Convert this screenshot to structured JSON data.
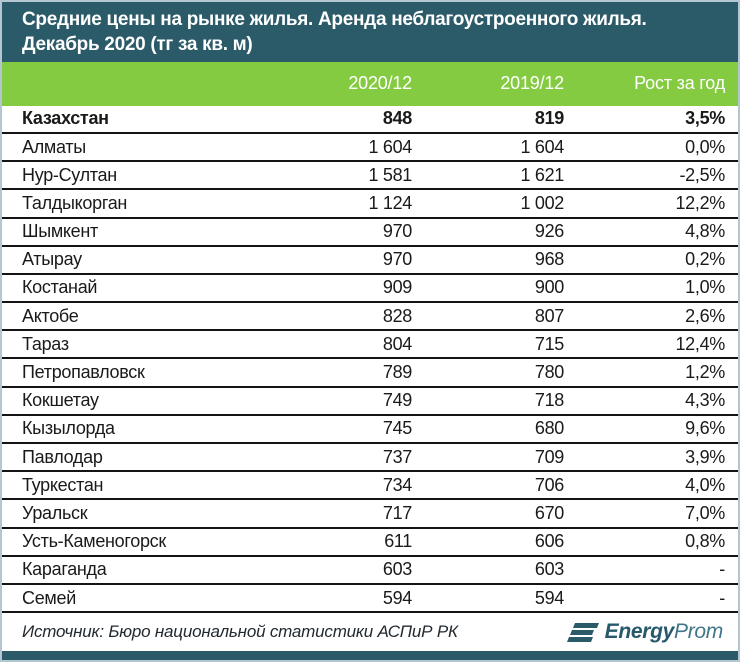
{
  "title": {
    "line1": "Средние цены на рынке жилья. Аренда неблагоустроенного жилья.",
    "line2": "Декабрь 2020 (тг за кв. м)"
  },
  "columns": {
    "col_2020": "2020/12",
    "col_2019": "2019/12",
    "col_growth": "Рост за год"
  },
  "rows": [
    {
      "name": "Казахстан",
      "v2020": "848",
      "v2019": "819",
      "growth": "3,5%",
      "bold": true
    },
    {
      "name": "Алматы",
      "v2020": "1 604",
      "v2019": "1 604",
      "growth": "0,0%",
      "bold": false
    },
    {
      "name": "Нур-Султан",
      "v2020": "1 581",
      "v2019": "1 621",
      "growth": "-2,5%",
      "bold": false
    },
    {
      "name": "Талдыкорган",
      "v2020": "1 124",
      "v2019": "1 002",
      "growth": "12,2%",
      "bold": false
    },
    {
      "name": "Шымкент",
      "v2020": "970",
      "v2019": "926",
      "growth": "4,8%",
      "bold": false
    },
    {
      "name": "Атырау",
      "v2020": "970",
      "v2019": "968",
      "growth": "0,2%",
      "bold": false
    },
    {
      "name": "Костанай",
      "v2020": "909",
      "v2019": "900",
      "growth": "1,0%",
      "bold": false
    },
    {
      "name": "Актобе",
      "v2020": "828",
      "v2019": "807",
      "growth": "2,6%",
      "bold": false
    },
    {
      "name": "Тараз",
      "v2020": "804",
      "v2019": "715",
      "growth": "12,4%",
      "bold": false
    },
    {
      "name": "Петропавловск",
      "v2020": "789",
      "v2019": "780",
      "growth": "1,2%",
      "bold": false
    },
    {
      "name": "Кокшетау",
      "v2020": "749",
      "v2019": "718",
      "growth": "4,3%",
      "bold": false
    },
    {
      "name": "Кызылорда",
      "v2020": "745",
      "v2019": "680",
      "growth": "9,6%",
      "bold": false
    },
    {
      "name": "Павлодар",
      "v2020": "737",
      "v2019": "709",
      "growth": "3,9%",
      "bold": false
    },
    {
      "name": "Туркестан",
      "v2020": "734",
      "v2019": "706",
      "growth": "4,0%",
      "bold": false
    },
    {
      "name": "Уральск",
      "v2020": "717",
      "v2019": "670",
      "growth": "7,0%",
      "bold": false
    },
    {
      "name": "Усть-Каменогорск",
      "v2020": "611",
      "v2019": "606",
      "growth": "0,8%",
      "bold": false
    },
    {
      "name": "Караганда",
      "v2020": "603",
      "v2019": "603",
      "growth": "-",
      "bold": false
    },
    {
      "name": "Семей",
      "v2020": "594",
      "v2019": "594",
      "growth": "-",
      "bold": false
    }
  ],
  "footer": {
    "source": "Источник: Бюро национальной статистики АСПиР РК",
    "logo_bold": "Energy",
    "logo_light": "Prom"
  },
  "colors": {
    "header_teal": "#2b5a68",
    "accent_green": "#85cb41",
    "row_separator": "#141414",
    "outer_border": "#b3c6d1",
    "logo_dark": "#26596b",
    "logo_light": "#41758a"
  },
  "chart_data": {
    "type": "table",
    "title": "Средние цены на рынке жилья. Аренда неблагоустроенного жилья. Декабрь 2020 (тг за кв. м)",
    "columns": [
      "",
      "2020/12",
      "2019/12",
      "Рост за год"
    ],
    "rows": [
      [
        "Казахстан",
        848,
        819,
        "3,5%"
      ],
      [
        "Алматы",
        1604,
        1604,
        "0,0%"
      ],
      [
        "Нур-Султан",
        1581,
        1621,
        "-2,5%"
      ],
      [
        "Талдыкорган",
        1124,
        1002,
        "12,2%"
      ],
      [
        "Шымкент",
        970,
        926,
        "4,8%"
      ],
      [
        "Атырау",
        970,
        968,
        "0,2%"
      ],
      [
        "Костанай",
        909,
        900,
        "1,0%"
      ],
      [
        "Актобе",
        828,
        807,
        "2,6%"
      ],
      [
        "Тараз",
        804,
        715,
        "12,4%"
      ],
      [
        "Петропавловск",
        789,
        780,
        "1,2%"
      ],
      [
        "Кокшетау",
        749,
        718,
        "4,3%"
      ],
      [
        "Кызылорда",
        745,
        680,
        "9,6%"
      ],
      [
        "Павлодар",
        737,
        709,
        "3,9%"
      ],
      [
        "Туркестан",
        734,
        706,
        "4,0%"
      ],
      [
        "Уральск",
        717,
        670,
        "7,0%"
      ],
      [
        "Усть-Каменогорск",
        611,
        606,
        "0,8%"
      ],
      [
        "Караганда",
        603,
        603,
        "-"
      ],
      [
        "Семей",
        594,
        594,
        "-"
      ]
    ],
    "source": "Источник: Бюро национальной статистики АСПиР РК"
  }
}
